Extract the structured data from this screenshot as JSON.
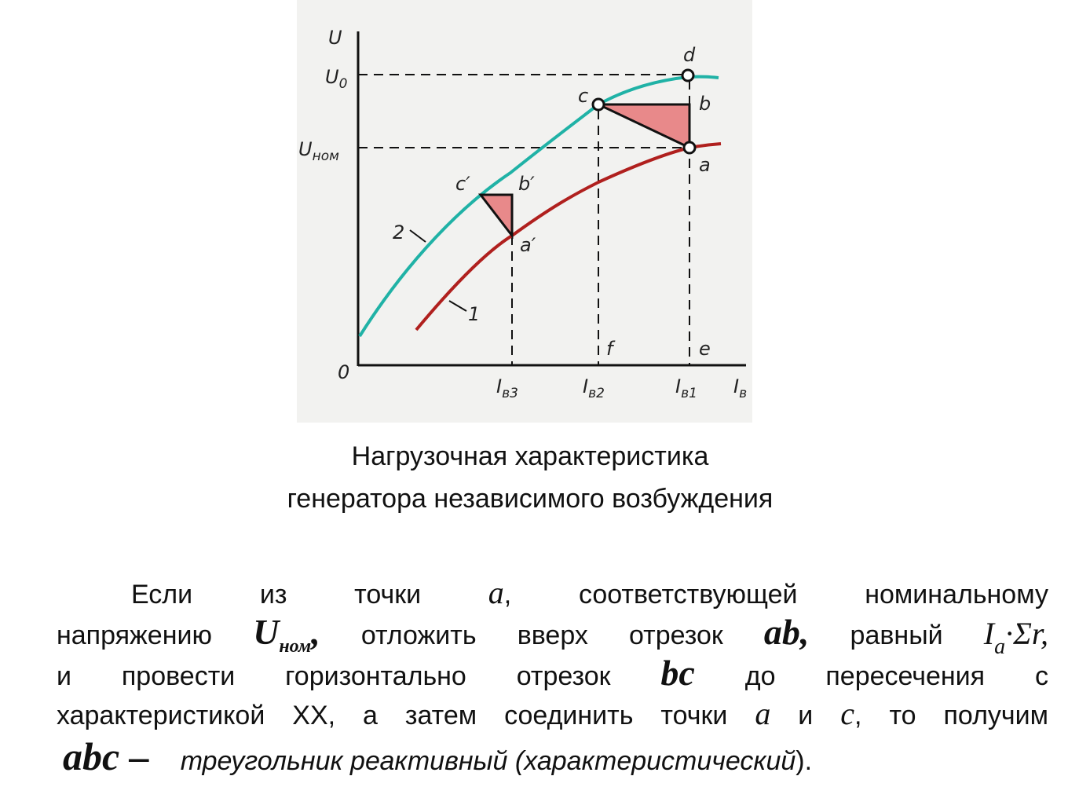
{
  "figure": {
    "axis_y": "U",
    "u0": {
      "main": "U",
      "sub": "0"
    },
    "unom": {
      "main": "U",
      "sub": "ном"
    },
    "origin": "0",
    "points": {
      "c": "c",
      "d": "d",
      "b": "b",
      "a": "a",
      "c1": "c′",
      "b1": "b′",
      "a1": "a′",
      "f": "f",
      "e": "e"
    },
    "curve_labels": [
      "2",
      "1"
    ],
    "x_labels": [
      {
        "main": "I",
        "sub": "в3"
      },
      {
        "main": "I",
        "sub": "в2"
      },
      {
        "main": "I",
        "sub": "в1"
      },
      {
        "main": "I",
        "sub": "в"
      }
    ]
  },
  "caption": [
    "Нагрузочная характеристика",
    "генератора независимого возбуждения"
  ],
  "paragraph": {
    "line1": [
      "Если из точки",
      "a",
      ", соответствующей номинальному"
    ],
    "line2": [
      "напряжению",
      "U",
      "ном",
      ",",
      "отложить вверх отрезок",
      "ab",
      ",",
      "равный",
      "I",
      "a",
      "·Σr",
      ","
    ],
    "line3": [
      "и провести горизонтально отрезок",
      "bc",
      "до пересечения с"
    ],
    "line4": [
      "характеристикой ХХ, а затем соединить точки",
      "a",
      "и",
      "c",
      ", то получим"
    ],
    "line5": [
      "abc –",
      "треугольник реактивный (характеристический",
      ")."
    ]
  }
}
